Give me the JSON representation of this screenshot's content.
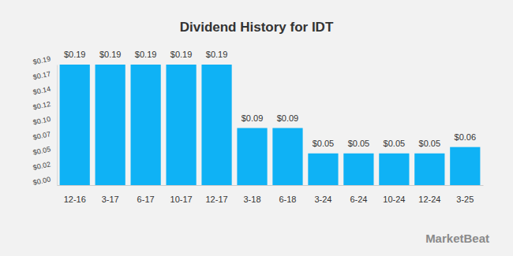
{
  "chart_data": {
    "type": "bar",
    "title": "Dividend History for IDT",
    "categories": [
      "12-16",
      "3-17",
      "6-17",
      "10-17",
      "12-17",
      "3-18",
      "6-18",
      "3-24",
      "6-24",
      "10-24",
      "12-24",
      "3-25"
    ],
    "values": [
      0.19,
      0.19,
      0.19,
      0.19,
      0.19,
      0.09,
      0.09,
      0.05,
      0.05,
      0.05,
      0.05,
      0.06
    ],
    "value_labels": [
      "$0.19",
      "$0.19",
      "$0.19",
      "$0.19",
      "$0.19",
      "$0.09",
      "$0.09",
      "$0.05",
      "$0.05",
      "$0.05",
      "$0.05",
      "$0.06"
    ],
    "data_labels": true,
    "color": "#0fb2f5",
    "ylim": [
      0,
      0.19
    ],
    "yticks": [
      {
        "value": 0,
        "label": "$0.00"
      },
      {
        "value": 0.02375,
        "label": "$0.02"
      },
      {
        "value": 0.0475,
        "label": "$0.05"
      },
      {
        "value": 0.07125,
        "label": "$0.07"
      },
      {
        "value": 0.095,
        "label": "$0.10"
      },
      {
        "value": 0.11875,
        "label": "$0.12"
      },
      {
        "value": 0.1425,
        "label": "$0.14"
      },
      {
        "value": 0.16625,
        "label": "$0.17"
      },
      {
        "value": 0.19,
        "label": "$0.19"
      }
    ],
    "grid": false,
    "annotation": "MarketBeat"
  }
}
